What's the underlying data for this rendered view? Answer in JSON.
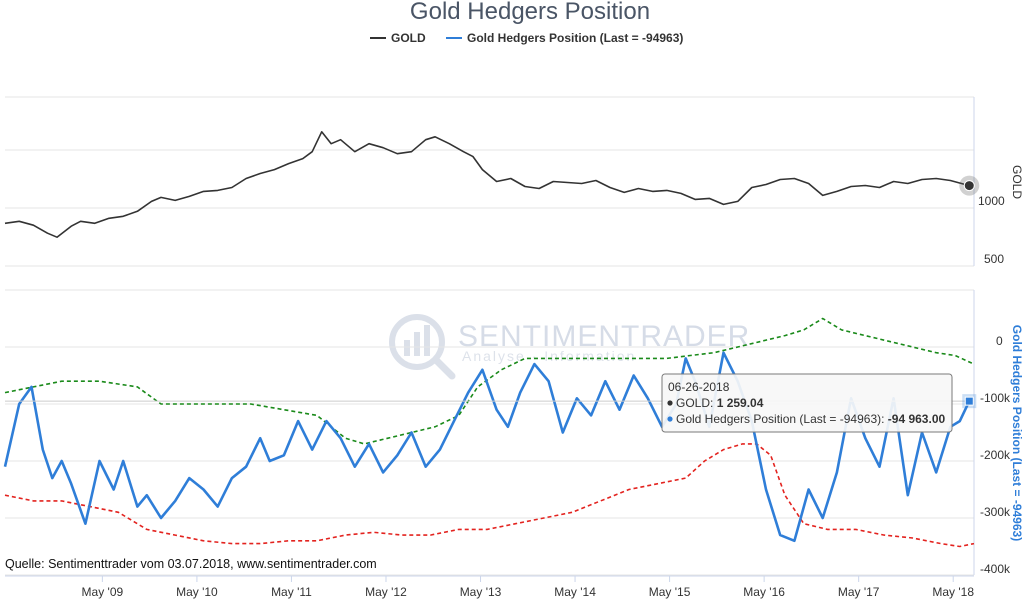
{
  "chart_data": {
    "type": "line",
    "title": "Gold Hedgers Position",
    "legend": [
      {
        "name": "GOLD",
        "color": "#333333"
      },
      {
        "name": "Gold Hedgers Position (Last = -94963)",
        "color": "#2f7ed8"
      }
    ],
    "x_tick_labels": [
      "May '09",
      "May '10",
      "May '11",
      "May '12",
      "May '13",
      "May '14",
      "May '15",
      "May '16",
      "May '17",
      "May '18"
    ],
    "x_range": [
      2008.3,
      2018.55
    ],
    "gold_axis": {
      "title": "GOLD",
      "ticks": [
        "1000",
        "500"
      ],
      "tick_values": [
        1000,
        500
      ],
      "range": [
        450,
        2150
      ]
    },
    "hedgers_axis": {
      "title": "Gold Hedgers Position (Last = -94963)",
      "ticks": [
        "0",
        "-100k",
        "-200k",
        "-300k",
        "-400k"
      ],
      "tick_values": [
        0,
        -100000,
        -200000,
        -300000,
        -400000
      ],
      "range": [
        -400000,
        100000
      ]
    },
    "series": [
      {
        "name": "GOLD",
        "x": [
          2008.3,
          2008.45,
          2008.6,
          2008.75,
          2008.85,
          2009.0,
          2009.1,
          2009.25,
          2009.4,
          2009.55,
          2009.7,
          2009.85,
          2009.95,
          2010.1,
          2010.25,
          2010.4,
          2010.55,
          2010.7,
          2010.85,
          2011.0,
          2011.15,
          2011.3,
          2011.45,
          2011.55,
          2011.65,
          2011.75,
          2011.85,
          2012.0,
          2012.15,
          2012.3,
          2012.45,
          2012.6,
          2012.75,
          2012.85,
          2013.0,
          2013.15,
          2013.25,
          2013.35,
          2013.5,
          2013.65,
          2013.8,
          2013.95,
          2014.1,
          2014.25,
          2014.4,
          2014.55,
          2014.7,
          2014.85,
          2015.0,
          2015.15,
          2015.3,
          2015.45,
          2015.6,
          2015.75,
          2015.9,
          2016.05,
          2016.2,
          2016.35,
          2016.5,
          2016.65,
          2016.8,
          2016.95,
          2017.1,
          2017.25,
          2017.4,
          2017.55,
          2017.7,
          2017.85,
          2018.0,
          2018.15,
          2018.3,
          2018.5
        ],
        "values": [
          880,
          900,
          860,
          780,
          740,
          850,
          900,
          880,
          930,
          950,
          1000,
          1100,
          1140,
          1110,
          1150,
          1200,
          1210,
          1240,
          1330,
          1380,
          1420,
          1480,
          1530,
          1600,
          1800,
          1680,
          1720,
          1600,
          1680,
          1640,
          1580,
          1600,
          1720,
          1750,
          1680,
          1600,
          1550,
          1420,
          1300,
          1330,
          1250,
          1230,
          1300,
          1290,
          1280,
          1310,
          1240,
          1190,
          1230,
          1200,
          1210,
          1180,
          1120,
          1130,
          1070,
          1100,
          1240,
          1270,
          1320,
          1330,
          1280,
          1160,
          1200,
          1250,
          1260,
          1240,
          1300,
          1280,
          1320,
          1330,
          1310,
          1259
        ]
      },
      {
        "name": "Gold Hedgers Position (Last = -94963)",
        "x": [
          2008.3,
          2008.45,
          2008.58,
          2008.7,
          2008.8,
          2008.9,
          2009.0,
          2009.15,
          2009.3,
          2009.45,
          2009.55,
          2009.7,
          2009.8,
          2009.95,
          2010.1,
          2010.25,
          2010.4,
          2010.55,
          2010.7,
          2010.85,
          2011.0,
          2011.1,
          2011.25,
          2011.4,
          2011.55,
          2011.7,
          2011.85,
          2012.0,
          2012.15,
          2012.3,
          2012.45,
          2012.6,
          2012.75,
          2012.9,
          2013.05,
          2013.2,
          2013.35,
          2013.5,
          2013.62,
          2013.75,
          2013.9,
          2014.05,
          2014.2,
          2014.35,
          2014.5,
          2014.65,
          2014.8,
          2014.95,
          2015.1,
          2015.25,
          2015.4,
          2015.5,
          2015.6,
          2015.75,
          2015.9,
          2016.05,
          2016.2,
          2016.35,
          2016.5,
          2016.65,
          2016.8,
          2016.95,
          2017.1,
          2017.25,
          2017.4,
          2017.55,
          2017.7,
          2017.85,
          2018.0,
          2018.15,
          2018.3,
          2018.4,
          2018.5
        ],
        "values": [
          -210000,
          -100000,
          -70000,
          -180000,
          -230000,
          -200000,
          -240000,
          -310000,
          -200000,
          -250000,
          -200000,
          -280000,
          -260000,
          -300000,
          -270000,
          -230000,
          -250000,
          -280000,
          -230000,
          -210000,
          -160000,
          -200000,
          -190000,
          -130000,
          -180000,
          -130000,
          -160000,
          -210000,
          -170000,
          -220000,
          -190000,
          -150000,
          -210000,
          -180000,
          -130000,
          -80000,
          -40000,
          -110000,
          -140000,
          -80000,
          -30000,
          -60000,
          -150000,
          -90000,
          -120000,
          -60000,
          -110000,
          -50000,
          -90000,
          -140000,
          -100000,
          -20000,
          -60000,
          -140000,
          -10000,
          -60000,
          -130000,
          -250000,
          -330000,
          -340000,
          -250000,
          -300000,
          -220000,
          -90000,
          -160000,
          -210000,
          -90000,
          -260000,
          -150000,
          -220000,
          -140000,
          -130000,
          -94963
        ]
      },
      {
        "name": "Upper band",
        "x": [
          2008.3,
          2008.6,
          2008.9,
          2009.3,
          2009.7,
          2009.95,
          2010.2,
          2010.55,
          2010.9,
          2011.25,
          2011.6,
          2011.9,
          2012.1,
          2012.35,
          2012.6,
          2012.85,
          2013.1,
          2013.3,
          2013.55,
          2013.8,
          2014.05,
          2014.3,
          2014.55,
          2014.8,
          2015.05,
          2015.3,
          2015.55,
          2015.8,
          2016.05,
          2016.3,
          2016.55,
          2016.75,
          2016.95,
          2017.15,
          2017.4,
          2017.65,
          2017.9,
          2018.15,
          2018.35,
          2018.55
        ],
        "values": [
          -80000,
          -70000,
          -60000,
          -60000,
          -70000,
          -100000,
          -100000,
          -100000,
          -100000,
          -110000,
          -120000,
          -160000,
          -170000,
          -160000,
          -150000,
          -140000,
          -120000,
          -70000,
          -40000,
          -20000,
          -20000,
          -20000,
          -20000,
          -20000,
          -20000,
          -20000,
          -15000,
          -10000,
          0,
          10000,
          20000,
          30000,
          50000,
          30000,
          20000,
          10000,
          0,
          -10000,
          -15000,
          -30000
        ]
      },
      {
        "name": "Lower band",
        "x": [
          2008.3,
          2008.6,
          2008.9,
          2009.2,
          2009.5,
          2009.8,
          2010.1,
          2010.4,
          2010.7,
          2011.0,
          2011.3,
          2011.6,
          2011.9,
          2012.2,
          2012.5,
          2012.8,
          2013.1,
          2013.4,
          2013.7,
          2014.0,
          2014.3,
          2014.6,
          2014.9,
          2015.2,
          2015.5,
          2015.7,
          2015.9,
          2016.1,
          2016.25,
          2016.4,
          2016.55,
          2016.75,
          2017.0,
          2017.3,
          2017.6,
          2017.9,
          2018.2,
          2018.4,
          2018.55
        ],
        "values": [
          -260000,
          -270000,
          -270000,
          -280000,
          -290000,
          -320000,
          -330000,
          -340000,
          -345000,
          -345000,
          -340000,
          -340000,
          -330000,
          -325000,
          -330000,
          -330000,
          -320000,
          -320000,
          -310000,
          -300000,
          -290000,
          -270000,
          -250000,
          -240000,
          -230000,
          -200000,
          -180000,
          -170000,
          -170000,
          -190000,
          -260000,
          -310000,
          -320000,
          -320000,
          -330000,
          -335000,
          -345000,
          -350000,
          -345000
        ]
      }
    ],
    "tooltip": {
      "date": "06-26-2018",
      "gold_label": "GOLD: ",
      "gold_value": "1 259.04",
      "hedgers_label": "Gold Hedgers Position (Last = -94963): ",
      "hedgers_value": "-94 963.00"
    }
  },
  "watermark": {
    "brand": "SENTIMENTRADER",
    "tagline": "Analyse · Information"
  },
  "footer": {
    "source": "Quelle: Sentimenttrader vom 03.07.2018, www.sentimentrader.com"
  },
  "colors": {
    "gold": "#333333",
    "hedgers": "#2f7ed8",
    "upper_band": "#1a8a1a",
    "lower_band": "#e3231f",
    "grid": "#e6e6e6",
    "hedgers_axis_title": "#2f7ed8"
  }
}
